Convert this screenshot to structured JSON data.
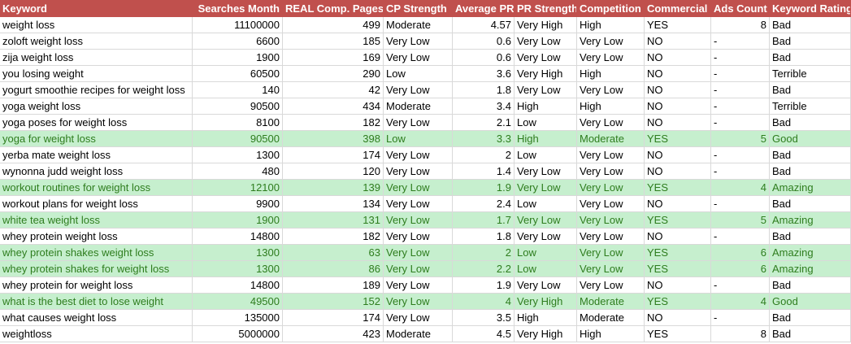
{
  "table": {
    "columns": [
      "Keyword",
      "Searches Month",
      "REAL Comp. Pages",
      "CP Strength",
      "Average PR",
      "PR Strength",
      "Competition",
      "Commercial",
      "Ads Count",
      "Keyword Rating"
    ],
    "rows": [
      [
        "weight loss",
        11100000,
        499,
        "Moderate",
        4.57,
        "Very High",
        "High",
        "YES",
        8,
        "Bad"
      ],
      [
        "zoloft weight loss",
        6600,
        185,
        "Very Low",
        0.6,
        "Very Low",
        "Very Low",
        "NO",
        "-",
        "Bad"
      ],
      [
        "zija weight loss",
        1900,
        169,
        "Very Low",
        0.6,
        "Very Low",
        "Very Low",
        "NO",
        "-",
        "Bad"
      ],
      [
        "you losing weight",
        60500,
        290,
        "Low",
        3.6,
        "Very High",
        "High",
        "NO",
        "-",
        "Terrible"
      ],
      [
        "yogurt smoothie recipes for weight loss",
        140,
        42,
        "Very Low",
        1.8,
        "Very Low",
        "Very Low",
        "NO",
        "-",
        "Bad"
      ],
      [
        "yoga weight loss",
        90500,
        434,
        "Moderate",
        3.4,
        "High",
        "High",
        "NO",
        "-",
        "Terrible"
      ],
      [
        "yoga poses for weight loss",
        8100,
        182,
        "Very Low",
        2.1,
        "Low",
        "Very Low",
        "NO",
        "-",
        "Bad"
      ],
      [
        "yoga for weight loss",
        90500,
        398,
        "Low",
        3.3,
        "High",
        "Moderate",
        "YES",
        5,
        "Good"
      ],
      [
        "yerba mate weight loss",
        1300,
        174,
        "Very Low",
        2,
        "Low",
        "Very Low",
        "NO",
        "-",
        "Bad"
      ],
      [
        "wynonna judd weight loss",
        480,
        120,
        "Very Low",
        1.4,
        "Very Low",
        "Very Low",
        "NO",
        "-",
        "Bad"
      ],
      [
        "workout routines for weight loss",
        12100,
        139,
        "Very Low",
        1.9,
        "Very Low",
        "Very Low",
        "YES",
        4,
        "Amazing"
      ],
      [
        "workout plans for weight loss",
        9900,
        134,
        "Very Low",
        2.4,
        "Low",
        "Very Low",
        "NO",
        "-",
        "Bad"
      ],
      [
        "white tea weight loss",
        1900,
        131,
        "Very Low",
        1.7,
        "Very Low",
        "Very Low",
        "YES",
        5,
        "Amazing"
      ],
      [
        "whey protein weight loss",
        14800,
        182,
        "Very Low",
        1.8,
        "Very Low",
        "Very Low",
        "NO",
        "-",
        "Bad"
      ],
      [
        "whey protein shakes weight loss",
        1300,
        63,
        "Very Low",
        2,
        "Low",
        "Very Low",
        "YES",
        6,
        "Amazing"
      ],
      [
        "whey protein shakes for weight loss",
        1300,
        86,
        "Very Low",
        2.2,
        "Low",
        "Very Low",
        "YES",
        6,
        "Amazing"
      ],
      [
        "whey protein for weight loss",
        14800,
        189,
        "Very Low",
        1.9,
        "Very Low",
        "Very Low",
        "NO",
        "-",
        "Bad"
      ],
      [
        "what is the best diet to lose weight",
        49500,
        152,
        "Very Low",
        4,
        "Very High",
        "Moderate",
        "YES",
        4,
        "Good"
      ],
      [
        "what causes weight loss",
        135000,
        174,
        "Very Low",
        3.5,
        "High",
        "Moderate",
        "NO",
        "-",
        "Bad"
      ],
      [
        "weightloss",
        5000000,
        423,
        "Moderate",
        4.5,
        "Very High",
        "High",
        "YES",
        8,
        "Bad"
      ]
    ],
    "highlight": {
      "background": "#c6efce",
      "color": "#2e7d1e",
      "rows": [
        7,
        10,
        12,
        14,
        15,
        17
      ]
    }
  }
}
